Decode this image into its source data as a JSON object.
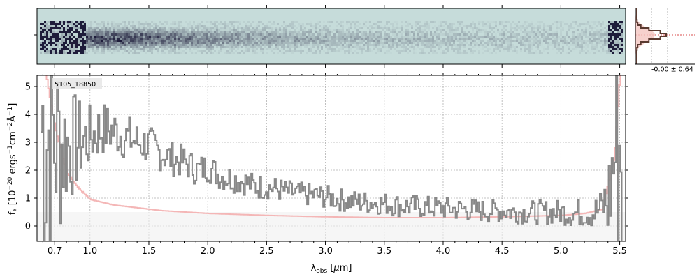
{
  "chart_data": [
    {
      "type": "image",
      "panel": "2D spectrum",
      "x_range_um": [
        0.55,
        5.55
      ],
      "colormap": [
        "#c6dcda",
        "#1e1c3a"
      ]
    },
    {
      "type": "line",
      "panel": "1D spectrum",
      "object_label": "5105_18850",
      "xlabel": "λobs [μm]",
      "ylabel": "fλ [10^-20 ergs^-1 cm^-2 Å^-1]",
      "x_ticks": [
        0.7,
        1.0,
        1.5,
        2.0,
        2.5,
        3.0,
        3.5,
        4.0,
        4.5,
        5.0,
        5.5
      ],
      "x_tick_labels": [
        "0.7",
        "1.0",
        "1.5",
        "2.0",
        "2.5",
        "3.0",
        "3.5",
        "4.0",
        "4.5",
        "5.0",
        "5.5"
      ],
      "y_ticks": [
        0,
        1,
        2,
        3,
        4,
        5
      ],
      "y_tick_labels": [
        "0",
        "1",
        "2",
        "3",
        "4",
        "5"
      ],
      "xlim": [
        0.55,
        5.55
      ],
      "ylim": [
        -0.55,
        5.4
      ],
      "grid": true,
      "colors": {
        "flux": "#888888",
        "error": "#f4b6b6",
        "model": "#e07070"
      },
      "series": [
        {
          "role": "flux",
          "x": [
            0.62,
            0.7,
            0.8,
            0.9,
            1.0,
            1.1,
            1.2,
            1.3,
            1.4,
            1.5,
            1.6,
            1.7,
            1.8,
            1.9,
            2.0,
            2.1,
            2.2,
            2.3,
            2.4,
            2.5,
            2.6,
            2.7,
            2.8,
            2.9,
            3.0,
            3.1,
            3.2,
            3.3,
            3.4,
            3.5,
            3.6,
            3.7,
            3.8,
            3.9,
            4.0,
            4.1,
            4.2,
            4.3,
            4.4,
            4.5,
            4.6,
            4.7,
            4.8,
            4.9,
            5.0,
            5.1,
            5.2,
            5.3,
            5.4,
            5.45,
            5.5
          ],
          "y": [
            3.5,
            3.0,
            2.9,
            3.0,
            3.2,
            3.5,
            3.4,
            3.2,
            3.0,
            2.9,
            2.6,
            2.4,
            2.3,
            2.0,
            2.1,
            1.8,
            1.7,
            1.6,
            1.4,
            1.4,
            1.3,
            1.2,
            1.15,
            1.1,
            1.05,
            0.95,
            0.9,
            0.85,
            0.85,
            0.8,
            0.75,
            0.7,
            0.7,
            0.65,
            0.65,
            0.6,
            0.6,
            0.55,
            0.55,
            0.55,
            0.5,
            0.5,
            0.5,
            0.5,
            0.5,
            0.45,
            0.5,
            0.5,
            0.9,
            2.5,
            3.0
          ]
        },
        {
          "role": "error",
          "x": [
            0.62,
            0.7,
            0.8,
            0.9,
            1.0,
            1.2,
            1.4,
            1.6,
            1.8,
            2.0,
            2.5,
            3.0,
            3.5,
            4.0,
            4.5,
            5.0,
            5.2,
            5.35,
            5.45,
            5.5
          ],
          "y": [
            5.5,
            3.5,
            1.9,
            1.35,
            0.95,
            0.75,
            0.65,
            0.55,
            0.5,
            0.45,
            0.38,
            0.33,
            0.3,
            0.3,
            0.33,
            0.38,
            0.45,
            0.6,
            2.5,
            5.5
          ]
        }
      ]
    },
    {
      "type": "histogram",
      "panel": "residual distribution",
      "annotation": "-0.00 ± 0.64"
    }
  ]
}
